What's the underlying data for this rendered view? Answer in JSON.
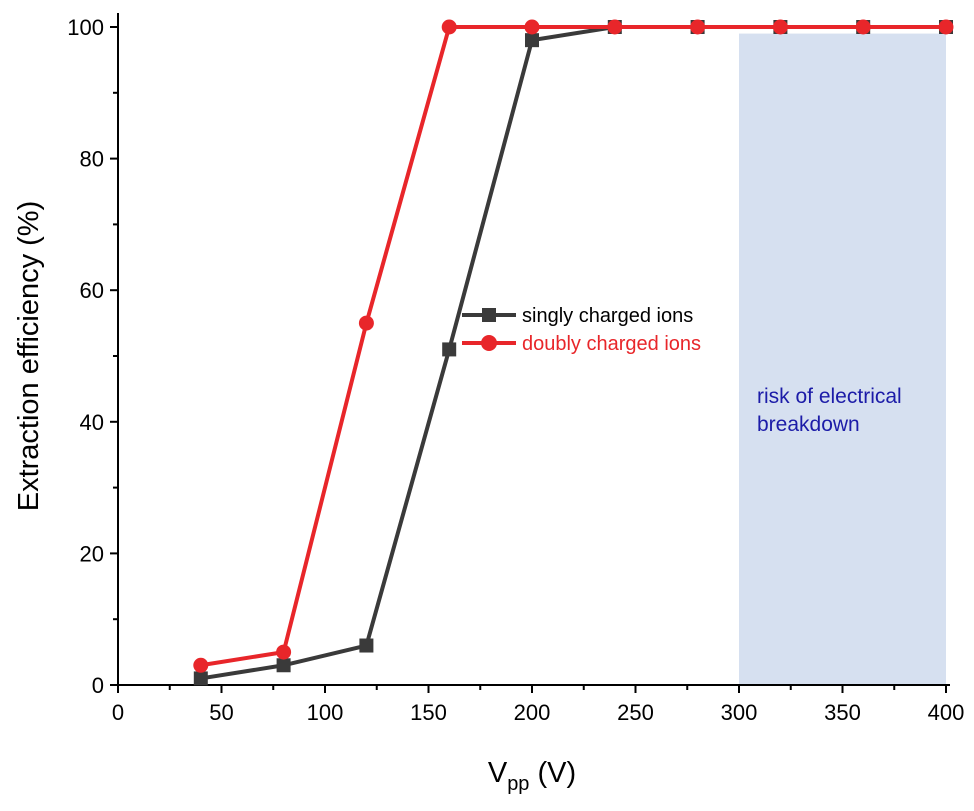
{
  "chart_data": {
    "type": "line",
    "xlabel_main": "V",
    "xlabel_sub": "pp",
    "xlabel_unit": " (V)",
    "ylabel": "Extraction efficiency (%)",
    "xlim": [
      0,
      400
    ],
    "ylim": [
      0,
      100
    ],
    "xticks": [
      0,
      50,
      100,
      150,
      200,
      250,
      300,
      350,
      400
    ],
    "yticks": [
      0,
      20,
      40,
      60,
      80,
      100
    ],
    "grid": false,
    "legend_position": "center",
    "series": [
      {
        "name": "singly charged ions",
        "color": "#3a3a3a",
        "marker": "square",
        "x": [
          40,
          80,
          120,
          160,
          200,
          240,
          280,
          320,
          360,
          400
        ],
        "y": [
          1,
          3,
          6,
          51,
          98,
          100,
          100,
          100,
          100,
          100
        ]
      },
      {
        "name": "doubly charged ions",
        "color": "#e8262a",
        "marker": "circle",
        "x": [
          40,
          80,
          120,
          160,
          200,
          240,
          280,
          320,
          360,
          400
        ],
        "y": [
          3,
          5,
          55,
          100,
          100,
          100,
          100,
          100,
          100,
          100
        ]
      }
    ],
    "shaded_region": {
      "x": [
        300,
        400
      ],
      "y": [
        0,
        99
      ],
      "color": "#d6e0f0",
      "label_line1": "risk of electrical",
      "label_line2": "breakdown",
      "label_color": "#1c1ca8"
    }
  }
}
